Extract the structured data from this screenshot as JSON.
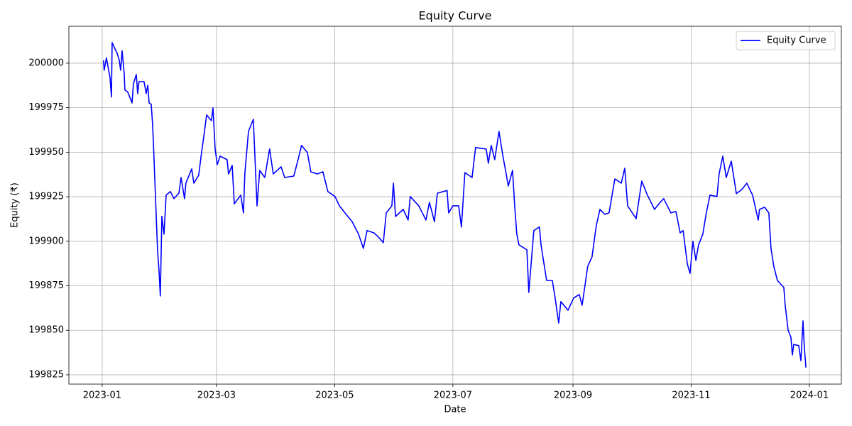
{
  "chart_data": {
    "type": "line",
    "title": "Equity Curve",
    "x_label": "Date",
    "y_label": "Equity (₹)",
    "xticks": [
      {
        "value": 0,
        "label": "2023-01"
      },
      {
        "value": 59,
        "label": "2023-03"
      },
      {
        "value": 120,
        "label": "2023-05"
      },
      {
        "value": 181,
        "label": "2023-07"
      },
      {
        "value": 243,
        "label": "2023-09"
      },
      {
        "value": 304,
        "label": "2023-11"
      },
      {
        "value": 365,
        "label": "2024-01"
      }
    ],
    "xlim": [
      -17.2,
      381.5
    ],
    "ylim": [
      199819.8,
      200020.7
    ],
    "yticks": [
      199825,
      199850,
      199875,
      199900,
      199925,
      199950,
      199975,
      200000
    ],
    "grid": true,
    "legend": "upper right",
    "series": [
      {
        "name": "Equity Curve",
        "color": "#0000ff",
        "x": [
          0.7,
          1,
          2.2,
          3,
          4,
          4.8,
          5.1,
          7.7,
          8.8,
          9.5,
          10.3,
          11.4,
          11.7,
          13.2,
          15.4,
          16.1,
          17.6,
          18.3,
          19,
          21.6,
          22.7,
          23.5,
          24.2,
          25.3,
          26,
          26.4,
          28.6,
          29.3,
          30,
          30.8,
          31.9,
          33,
          35.2,
          37,
          39.6,
          40.7,
          42.5,
          43.2,
          46.2,
          47.3,
          49.8,
          51.3,
          52.8,
          53.9,
          56.4,
          57.2,
          58.3,
          59.4,
          60.8,
          64.5,
          65.2,
          67.1,
          68.2,
          71.5,
          72.9,
          73.6,
          75.5,
          78,
          79.9,
          81.3,
          83.9,
          86.4,
          88.3,
          92.3,
          94.2,
          98.9,
          101.1,
          102.9,
          105.9,
          107.7,
          111,
          113.9,
          116.5,
          120.2,
          122.4,
          125.3,
          129,
          132.3,
          134.8,
          136.7,
          140.3,
          142.9,
          145.1,
          146.6,
          149.5,
          150.3,
          151.4,
          155.4,
          157.9,
          159,
          163.4,
          167.1,
          168.9,
          171.5,
          173,
          178,
          178.8,
          181,
          184,
          185.4,
          187.2,
          190.9,
          192.7,
          198.2,
          199.3,
          200.8,
          202.6,
          204.8,
          206.7,
          208.5,
          209.6,
          211.8,
          212.9,
          214,
          215.1,
          219.2,
          220.2,
          222.8,
          225.7,
          226.5,
          229.4,
          232.3,
          233.8,
          235.6,
          236.7,
          240.4,
          243.3,
          246.2,
          247.7,
          250.6,
          252.8,
          255,
          256.9,
          259.4,
          261.6,
          264.6,
          267.9,
          269.7,
          271.2,
          275.6,
          278.5,
          281.4,
          285.1,
          288,
          289.8,
          293.5,
          296.1,
          298.3,
          299.8,
          302,
          303.4,
          304.9,
          306.4,
          307.8,
          310,
          311.8,
          313.7,
          317.3,
          318.4,
          320.3,
          322.1,
          324.7,
          327.3,
          330.2,
          332.7,
          335.7,
          338.6,
          339.3,
          341.9,
          344.1,
          345.2,
          346.6,
          348.5,
          351.8,
          352.5,
          354,
          355.5,
          356.2,
          356.9,
          359.5,
          360.6,
          361.7,
          362.4,
          363.2
        ],
        "values": [
          200001.6,
          199996,
          200003,
          199998,
          199992,
          199981,
          200011.5,
          200005.6,
          200001.6,
          199996,
          200007,
          199993.6,
          199985,
          199983.7,
          199977.7,
          199988.4,
          199993.6,
          199982.9,
          199989.6,
          199989.6,
          199982.9,
          199987.6,
          199977.7,
          199976.9,
          199965.7,
          199955.8,
          199894,
          199884,
          199869.3,
          199914,
          199904,
          199925.9,
          199927.9,
          199923.9,
          199927,
          199935.8,
          199923.9,
          199932.6,
          199940.6,
          199932.6,
          199937,
          199949.8,
          199961.7,
          199970.9,
          199967.7,
          199974.9,
          199951.8,
          199943,
          199947.8,
          199945.8,
          199937.8,
          199942.6,
          199921,
          199925.9,
          199915.9,
          199937.8,
          199961.7,
          199968.5,
          199919.9,
          199939.8,
          199935.8,
          199951.8,
          199937.8,
          199941.8,
          199935.8,
          199936.6,
          199945.8,
          199953.8,
          199949.8,
          199939,
          199937.8,
          199939,
          199927.9,
          199925.1,
          199919.9,
          199915.9,
          199911,
          199904,
          199896,
          199906,
          199904.7,
          199902,
          199899.2,
          199915.9,
          199919.9,
          199932.6,
          199913.9,
          199917.9,
          199911.9,
          199925.1,
          199919.9,
          199911.9,
          199921.9,
          199911,
          199927,
          199928.5,
          199915.9,
          199919.9,
          199919.9,
          199908,
          199938.6,
          199935.8,
          199952.6,
          199951.8,
          199943.8,
          199953.8,
          199945.8,
          199961.7,
          199948.6,
          199937.8,
          199931,
          199939.8,
          199919.9,
          199904,
          199898,
          199895.2,
          199871.3,
          199906,
          199908,
          199898,
          199878,
          199878,
          199868.1,
          199854.1,
          199866.1,
          199861.3,
          199868.1,
          199870.1,
          199864.1,
          199886,
          199891.2,
          199908.7,
          199917.9,
          199915.1,
          199915.9,
          199935,
          199932.6,
          199941,
          199919.9,
          199912.7,
          199933.8,
          199925.9,
          199917.9,
          199921.9,
          199923.9,
          199915.9,
          199916.7,
          199904.7,
          199906,
          199887.2,
          199882,
          199900,
          199889.2,
          199898,
          199904,
          199915.9,
          199925.9,
          199925.1,
          199937.8,
          199947.8,
          199935.8,
          199945,
          199926.7,
          199929.1,
          199932.6,
          199925.9,
          199911.9,
          199917.9,
          199919.1,
          199915.9,
          199896,
          199886,
          199878,
          199874,
          199864.1,
          199850.1,
          199846.1,
          199836.2,
          199842.1,
          199841.4,
          199833,
          199855.3,
          199840.2,
          199829.1
        ]
      }
    ]
  }
}
